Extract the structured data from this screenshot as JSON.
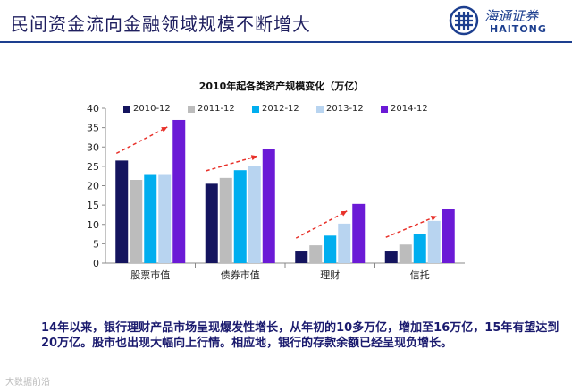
{
  "header": {
    "title": "民间资金流向金融领域规模不断增大",
    "logo_cn": "海通证券",
    "logo_en": "HAITONG"
  },
  "chart_data": {
    "type": "bar",
    "title": "2010年起各类资产规模变化（万亿）",
    "categories": [
      "股票市值",
      "债券市值",
      "理财",
      "信托"
    ],
    "series": [
      {
        "name": "2010-12",
        "color": "#14145e",
        "values": [
          26.5,
          20.5,
          3.0,
          3.0
        ]
      },
      {
        "name": "2011-12",
        "color": "#bcbcbc",
        "values": [
          21.5,
          22.0,
          4.6,
          4.8
        ]
      },
      {
        "name": "2012-12",
        "color": "#00aeef",
        "values": [
          23.0,
          24.0,
          7.1,
          7.5
        ]
      },
      {
        "name": "2013-12",
        "color": "#b8d4f0",
        "values": [
          23.0,
          25.0,
          10.2,
          10.9
        ]
      },
      {
        "name": "2014-12",
        "color": "#6b1ad6",
        "values": [
          37.0,
          29.5,
          15.3,
          14.0
        ]
      }
    ],
    "ylim": [
      0,
      40
    ],
    "yticks": [
      0,
      5,
      10,
      15,
      20,
      25,
      30,
      35,
      40
    ],
    "xlabel": "",
    "ylabel": "",
    "arrow_color": "#e8312a"
  },
  "note": {
    "text": "14年以来，银行理财产品市场呈现爆发性增长，从年初的10多万亿，增加至16万亿，15年有望达到20万亿。股市也出现大幅向上行情。相应地，银行的存款余额已经呈现负增长。"
  },
  "watermark": "大数据前沿"
}
